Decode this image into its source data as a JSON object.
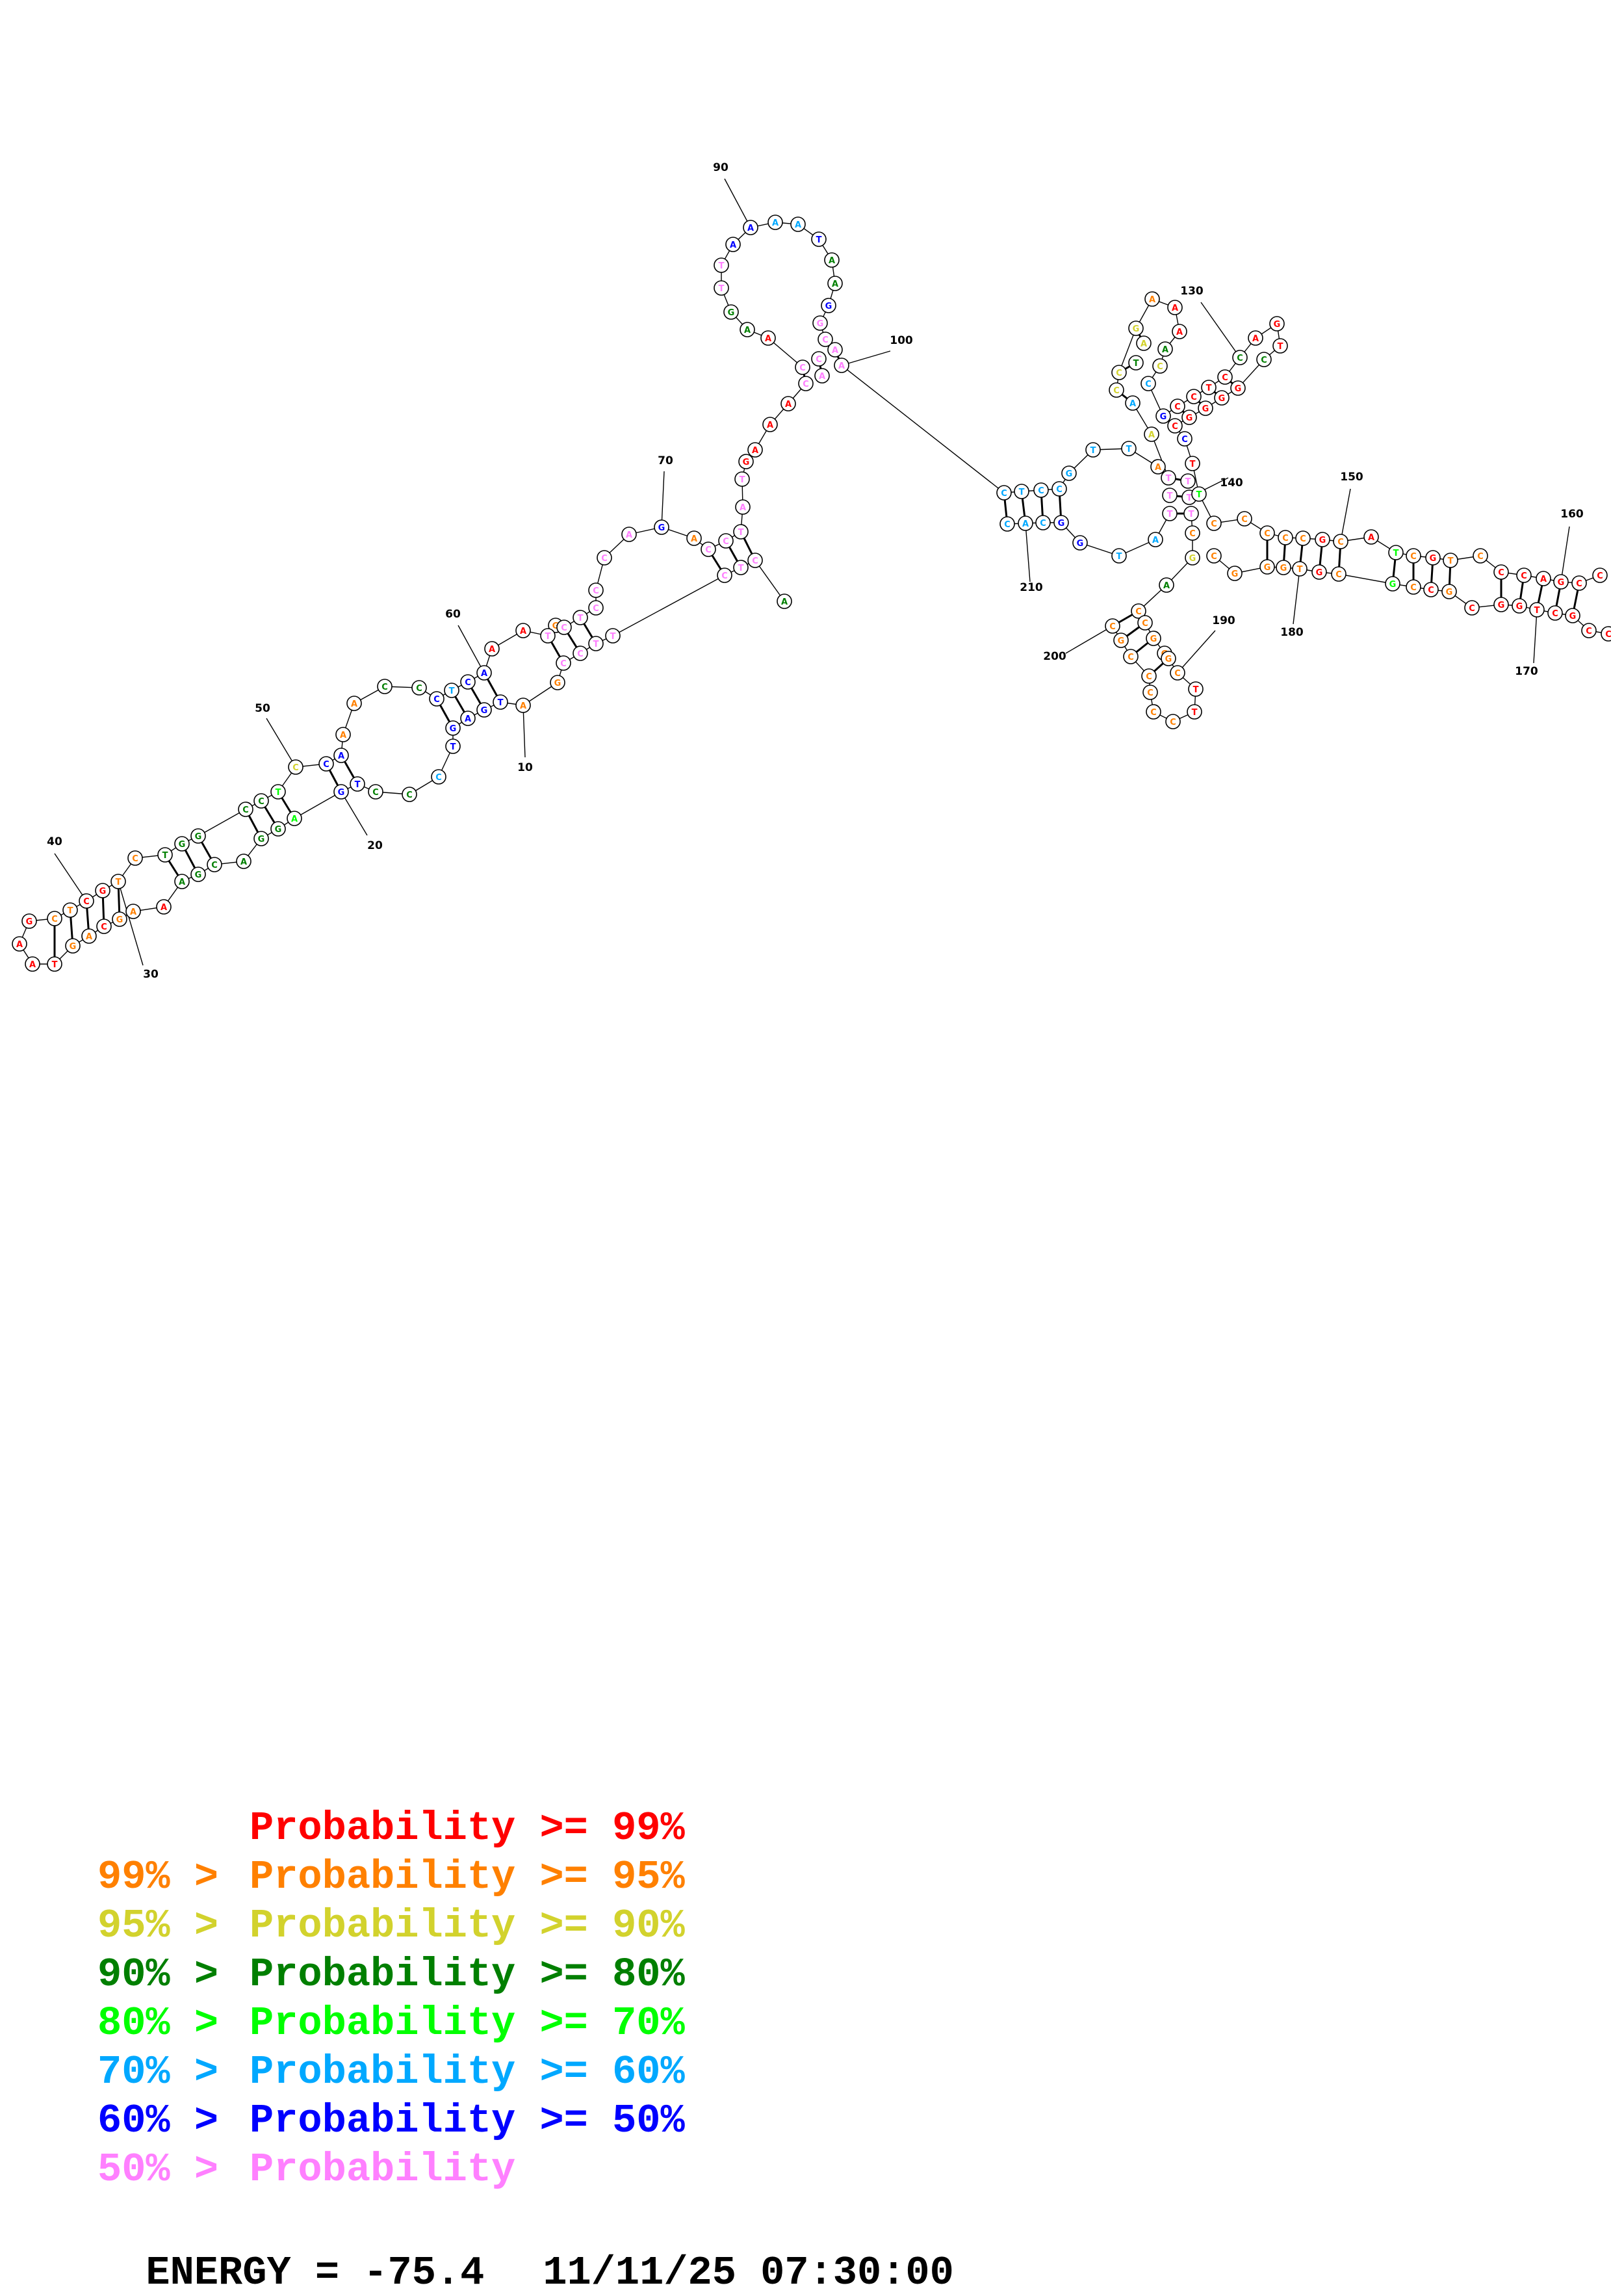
{
  "colors": {
    "c99": "#ff0000",
    "c95": "#ff8000",
    "c90": "#d2d22d",
    "c80": "#007f00",
    "c70": "#00ff00",
    "c60": "#00a8ff",
    "c50": "#0000ff",
    "clow": "#ff80ff"
  },
  "legend": [
    {
      "prefix": "",
      "label": "Probability >= 99%",
      "color_key": "c99"
    },
    {
      "prefix": "99% > ",
      "label": "Probability >= 95%",
      "color_key": "c95"
    },
    {
      "prefix": "95% > ",
      "label": "Probability >= 90%",
      "color_key": "c90"
    },
    {
      "prefix": "90% > ",
      "label": "Probability >= 80%",
      "color_key": "c80"
    },
    {
      "prefix": "80% > ",
      "label": "Probability >= 70%",
      "color_key": "c70"
    },
    {
      "prefix": "70% > ",
      "label": "Probability >= 60%",
      "color_key": "c60"
    },
    {
      "prefix": "60% > ",
      "label": "Probability >= 50%",
      "color_key": "c50"
    },
    {
      "prefix": "50% > ",
      "label": "Probability",
      "color_key": "clow"
    }
  ],
  "energy": {
    "label": "ENERGY = -75.4",
    "timestamp": "11/11/25 07:30:00"
  },
  "position_labels": [
    "10",
    "20",
    "30",
    "40",
    "50",
    "60",
    "70",
    "90",
    "100",
    "130",
    "140",
    "150",
    "160",
    "170",
    "180",
    "190",
    "200",
    "210"
  ]
}
